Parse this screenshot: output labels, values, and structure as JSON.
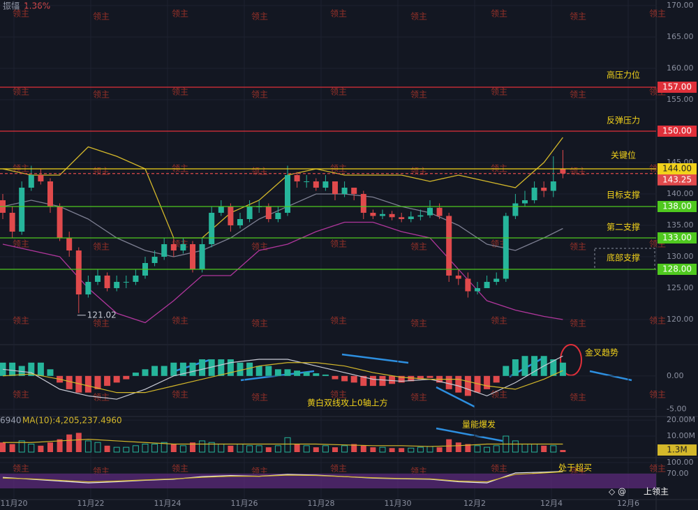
{
  "chart_data": [
    {
      "type": "candlestick",
      "amplitude_label": "振幅",
      "amplitude": {
        "value": 1.36,
        "label": "1.36%"
      },
      "open": [
        139,
        137,
        134,
        141,
        143,
        142,
        138,
        133,
        131,
        124,
        126,
        127,
        125,
        126,
        126,
        127,
        129,
        130,
        132,
        131,
        132,
        128,
        132,
        137,
        138,
        135,
        136,
        138,
        138,
        136,
        137,
        143,
        142,
        142,
        141,
        142,
        140,
        141,
        140,
        137,
        136.5,
        136.8,
        136.3,
        136,
        136.4,
        136.6,
        137.8,
        136.5,
        127,
        126.5,
        124.5,
        125,
        126,
        126.5,
        136.5,
        138.5,
        139,
        141,
        140.5,
        144
      ],
      "high": [
        140,
        138,
        142,
        144.5,
        144,
        142.5,
        138.5,
        134,
        131.5,
        127,
        128,
        127.5,
        127,
        127,
        128,
        130,
        131,
        133,
        133,
        133,
        132.5,
        133,
        138,
        139,
        138.5,
        137,
        139,
        139,
        138.5,
        138,
        144.5,
        143.5,
        143,
        142.5,
        143,
        142,
        142,
        141,
        140.5,
        137.5,
        137.5,
        137.3,
        137,
        137.2,
        137.5,
        139,
        138.5,
        137,
        128,
        127.5,
        126,
        127,
        127.5,
        137,
        140,
        140.5,
        142,
        142,
        146,
        147
      ],
      "low": [
        136,
        133,
        133.5,
        140.5,
        141.5,
        137,
        132.5,
        130,
        121.02,
        123.5,
        125.5,
        124.5,
        124.5,
        125,
        125.5,
        126.5,
        128.5,
        129.5,
        130,
        130.5,
        127.5,
        127.5,
        131.5,
        136.5,
        134,
        134.5,
        135.5,
        137,
        135.5,
        135.5,
        136.5,
        141,
        141,
        140.5,
        140.5,
        139,
        139.5,
        139,
        136,
        136,
        136,
        135.8,
        135.5,
        135.5,
        135.8,
        136.2,
        136,
        126,
        125.5,
        123.5,
        124,
        125,
        125.5,
        126,
        136,
        138,
        138.5,
        139.5,
        139.5,
        142.5
      ],
      "close": [
        137,
        134,
        141,
        143,
        142,
        138,
        133,
        131,
        124,
        126,
        127,
        125,
        126,
        126,
        127,
        129,
        130,
        132,
        131,
        132,
        128,
        132,
        137,
        138,
        135,
        136,
        138,
        138,
        136,
        137,
        143,
        142,
        142,
        141,
        142,
        140,
        141,
        140,
        137,
        136.5,
        136.8,
        136.3,
        136,
        136.4,
        136.6,
        137.8,
        136.5,
        127,
        126.5,
        124.5,
        125,
        126,
        126.5,
        136.5,
        138.5,
        139,
        141,
        140.5,
        142,
        143.25
      ],
      "up_color": "#26b59b",
      "down_color": "#e04a4c",
      "ylim": [
        116,
        170
      ],
      "yticks": [
        {
          "value": 170,
          "label": "170.00"
        },
        {
          "value": 165,
          "label": "165.00"
        },
        {
          "value": 160,
          "label": "160.00"
        },
        {
          "value": 155,
          "label": "155.00"
        },
        {
          "value": 150,
          "label": "150.00"
        },
        {
          "value": 145,
          "label": "145.00"
        },
        {
          "value": 140,
          "label": "140.00"
        },
        {
          "value": 135,
          "label": "135.00"
        },
        {
          "value": 130,
          "label": "130.00"
        },
        {
          "value": 125,
          "label": "125.00"
        },
        {
          "value": 120,
          "label": "120.00"
        }
      ],
      "grid": true,
      "line_x": [
        0,
        3,
        6,
        9,
        12,
        15,
        18,
        21,
        24,
        27,
        30,
        33,
        36,
        39,
        42,
        45,
        48,
        51,
        54,
        57,
        59
      ],
      "bands": [
        {
          "color": "#d4b82a",
          "values": [
            144,
            143,
            143,
            147.5,
            146,
            144,
            133,
            133,
            137,
            139,
            143,
            144,
            143,
            143,
            143,
            142,
            143,
            142,
            141,
            145,
            149
          ]
        },
        {
          "color": "#7d7f92",
          "values": [
            138,
            139,
            138,
            136,
            133,
            131,
            130,
            131,
            133,
            136,
            138,
            140,
            140,
            139.5,
            138,
            137,
            135,
            132,
            131,
            133,
            134.5
          ]
        },
        {
          "color": "#b0369c",
          "values": [
            132,
            131,
            130,
            125,
            121,
            119.5,
            123,
            127,
            127,
            131,
            132,
            134,
            135.5,
            135.5,
            134,
            133,
            128,
            123,
            121.5,
            120.5,
            120
          ]
        }
      ],
      "low_label": 121.02,
      "levels": [
        {
          "value": 157,
          "label": "157.00",
          "color": "#e0303a",
          "note": "高压力位"
        },
        {
          "value": 150,
          "label": "150.00",
          "color": "#e0303a",
          "note": "反弹压力"
        },
        {
          "value": 144,
          "label": "144.00",
          "color": "#f2d21b",
          "note": "关键位"
        },
        {
          "value": 143.25,
          "label": "143.25",
          "color": "#e04a4c",
          "dashed": true
        },
        {
          "value": 138,
          "label": "138.00",
          "color": "#4fc91f",
          "note": "目标支撑"
        },
        {
          "value": 133,
          "label": "133.00",
          "color": "#4fc91f",
          "note": "第二支撑"
        },
        {
          "value": 128,
          "label": "128.00",
          "color": "#4fc91f",
          "note": "底部支撑"
        }
      ],
      "xtick_labels": [
        "11月20",
        "11月22",
        "11月24",
        "11月26",
        "11月28",
        "11月30",
        "12月2",
        "12月4",
        "12月6"
      ],
      "watermark": "领主",
      "brand": "上领主"
    },
    {
      "type": "macd",
      "values": [
        2,
        2,
        1.5,
        2,
        2,
        1,
        -1,
        -2,
        -2.5,
        -2.5,
        -2,
        -1.5,
        -1,
        -0.5,
        0.5,
        1,
        1.5,
        1.5,
        2,
        2,
        2,
        2.5,
        2.5,
        2.5,
        2.5,
        2,
        2,
        1.5,
        1.5,
        1,
        1,
        0.8,
        0.6,
        0.4,
        0.2,
        -0.5,
        -0.8,
        -1,
        -1.5,
        -1.5,
        -1.5,
        -1.2,
        -1,
        -0.8,
        -0.5,
        -0.3,
        -1,
        -2,
        -2.5,
        -3,
        -2.5,
        -2,
        -1,
        1.5,
        2.5,
        3,
        3,
        3,
        2.5,
        2
      ],
      "up_color": "#26b59b",
      "down_color": "#e04a4c",
      "ylim": [
        -6,
        4.6
      ],
      "yticks": [
        {
          "value": 0,
          "label": "0.00"
        },
        {
          "value": -5,
          "label": "-5.00"
        }
      ],
      "line_x": [
        0,
        3,
        6,
        9,
        12,
        15,
        18,
        21,
        24,
        27,
        30,
        33,
        36,
        39,
        42,
        45,
        48,
        51,
        54,
        57,
        59
      ],
      "lines": [
        {
          "color": "#c9cbd6",
          "values": [
            1,
            0.5,
            -2,
            -3,
            -3.5,
            -2,
            0,
            1,
            2,
            2.5,
            2.5,
            1.5,
            0.5,
            -0.5,
            -0.8,
            -0.5,
            -1.5,
            -3,
            -1,
            1.5,
            3
          ]
        },
        {
          "color": "#d4b82a",
          "values": [
            0,
            0.3,
            -0.5,
            -1.5,
            -2.5,
            -2.5,
            -1.5,
            -0.5,
            0.5,
            1.5,
            2,
            2,
            1.5,
            0.5,
            -0.2,
            -0.5,
            -0.5,
            -1.5,
            -2,
            -0.5,
            0.8
          ]
        }
      ],
      "annotations": [
        "金叉趋势",
        "黄白双线攻上0轴上方"
      ]
    },
    {
      "type": "volume",
      "prefix": "6940",
      "ma_label": "MA(10):4,205,237.4960",
      "values": [
        6,
        5,
        7,
        5,
        4,
        6,
        8,
        11,
        12,
        7,
        6,
        4,
        3,
        3,
        4,
        5,
        5,
        6,
        5,
        4,
        6,
        7,
        6,
        5,
        4,
        5,
        4,
        4,
        3,
        4,
        9,
        5,
        4,
        3,
        4,
        3,
        4,
        5,
        4,
        3,
        3,
        2.5,
        2.5,
        2.5,
        3,
        3.5,
        3,
        8,
        6,
        5,
        4,
        3,
        4,
        10,
        7,
        5,
        5,
        4,
        4,
        1.3
      ],
      "ylim": [
        0,
        20.9
      ],
      "yticks": [
        {
          "value": 20,
          "label": "20.00M"
        },
        {
          "value": 10,
          "label": "10.00M"
        }
      ],
      "last": {
        "value": 1.3,
        "label": "1.3M"
      },
      "line_x": [
        0,
        3,
        6,
        9,
        12,
        15,
        18,
        21,
        24,
        27,
        30,
        33,
        36,
        39,
        42,
        45,
        48,
        51,
        54,
        57,
        59
      ],
      "ma": {
        "color": "#d4b82a",
        "values": [
          6,
          6,
          7,
          8,
          7,
          6,
          5,
          5,
          5,
          5,
          5,
          5,
          4.5,
          4,
          4,
          3.5,
          4,
          5,
          5,
          5,
          5
        ]
      },
      "annotation": "量能爆发"
    },
    {
      "type": "oscillator",
      "ylim": [
        0,
        100
      ],
      "yticks": [
        {
          "value": 100,
          "label": "100.00"
        },
        {
          "value": 70,
          "label": "70.00"
        }
      ],
      "line_x": [
        0,
        3,
        6,
        9,
        12,
        15,
        18,
        21,
        24,
        27,
        30,
        33,
        36,
        39,
        42,
        45,
        48,
        51,
        54,
        57,
        59
      ],
      "lines": [
        {
          "color": "#e8e8ee",
          "values": [
            60,
            55,
            50,
            45,
            48,
            52,
            55,
            62,
            65,
            63,
            68,
            66,
            62,
            58,
            56,
            55,
            48,
            45,
            72,
            74,
            76
          ]
        },
        {
          "color": "#d4b82a",
          "values": [
            58,
            56,
            52,
            48,
            50,
            53,
            56,
            60,
            63,
            63,
            66,
            65,
            62,
            59,
            57,
            56,
            50,
            48,
            68,
            72,
            75
          ]
        }
      ],
      "annotation": "处于超买"
    }
  ]
}
